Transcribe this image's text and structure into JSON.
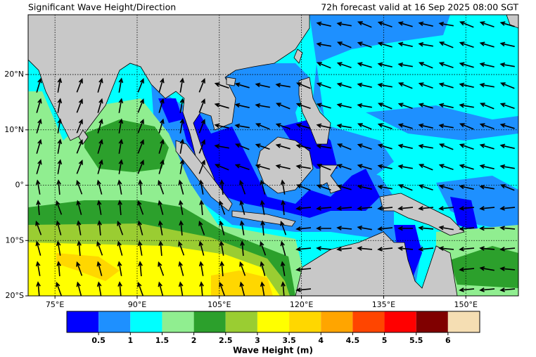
{
  "chart_data": {
    "type": "map",
    "title": "Significant Wave Height/Direction",
    "subtitle": "72h forecast valid at 16 Sep 2025 08:00 SGT",
    "xlim": [
      70.1,
      159.6
    ],
    "ylim": [
      -20,
      30.8
    ],
    "xticks": [
      {
        "value": 75,
        "label": "75°E"
      },
      {
        "value": 90,
        "label": "90°E"
      },
      {
        "value": 105,
        "label": "105°E"
      },
      {
        "value": 120,
        "label": "120°E"
      },
      {
        "value": 135,
        "label": "135°E"
      },
      {
        "value": 150,
        "label": "150°E"
      }
    ],
    "yticks": [
      {
        "value": -20,
        "label": "20°S"
      },
      {
        "value": -10,
        "label": "10°S"
      },
      {
        "value": 0,
        "label": "0°"
      },
      {
        "value": 10,
        "label": "10°N"
      },
      {
        "value": 20,
        "label": "20°N"
      }
    ],
    "grid": true,
    "colorbar": {
      "label": "Wave Height (m)",
      "colors": [
        "#0000ff",
        "#1e90ff",
        "#00ffff",
        "#90ee90",
        "#2ca02c",
        "#9acd32",
        "#ffff00",
        "#ffd700",
        "#ffa500",
        "#ff4500",
        "#ff0000",
        "#800000",
        "#f5deb3"
      ],
      "ticks": [
        0.5,
        1,
        1.5,
        2,
        2.5,
        3,
        3.5,
        4,
        4.5,
        5,
        5.5,
        6
      ]
    }
  }
}
